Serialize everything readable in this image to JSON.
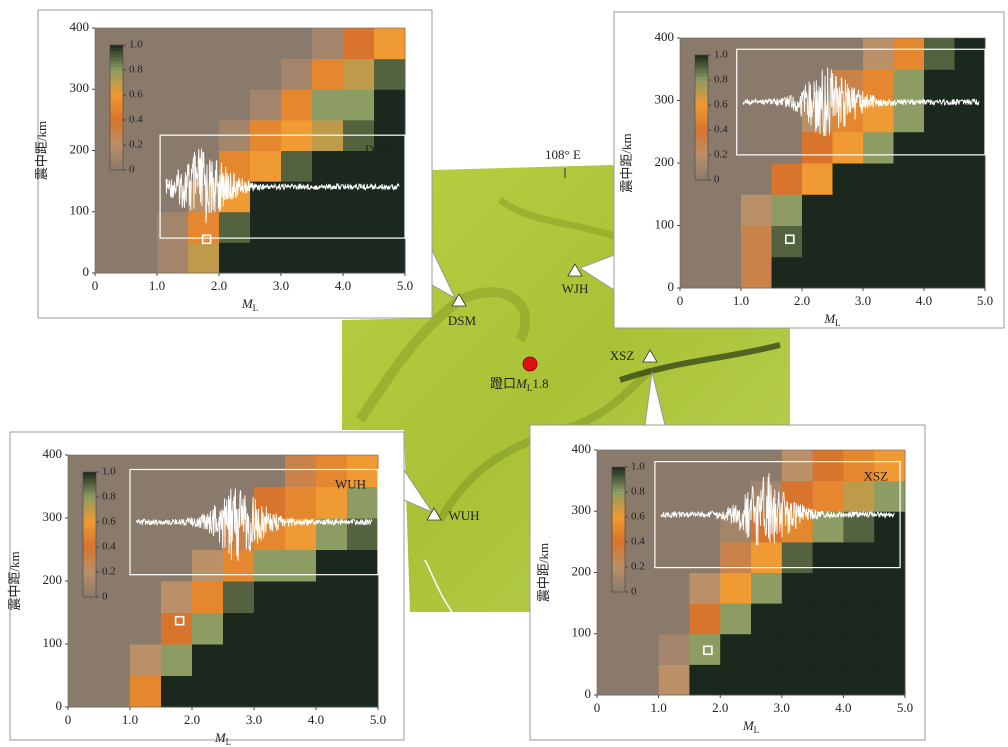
{
  "chart_data": [
    {
      "type": "heatmap",
      "label": "DSM",
      "label_color": "#111111",
      "x_label": {
        "main": "M",
        "sub": "L"
      },
      "y_label": "震中距/km",
      "x": [
        0,
        0.5,
        1,
        1.5,
        2,
        2.5,
        3,
        3.5,
        4,
        4.5,
        5
      ],
      "y": [
        0,
        50,
        100,
        150,
        200,
        250,
        300,
        350,
        400
      ],
      "values": [
        [
          0,
          0,
          0.1,
          0.7,
          1,
          1,
          1,
          1,
          1,
          1
        ],
        [
          0,
          0,
          0.1,
          0.5,
          0.9,
          1,
          1,
          1,
          1,
          1
        ],
        [
          0,
          0,
          0,
          0.2,
          0.6,
          1,
          1,
          1,
          1,
          1
        ],
        [
          0,
          0,
          0,
          0,
          0.5,
          0.6,
          0.9,
          1,
          1,
          1
        ],
        [
          0,
          0,
          0,
          0,
          0.1,
          0.5,
          0.6,
          0.7,
          0.9,
          1
        ],
        [
          0,
          0,
          0,
          0,
          0,
          0.1,
          0.5,
          0.8,
          0.8,
          1
        ],
        [
          0,
          0,
          0,
          0,
          0,
          0,
          0.1,
          0.5,
          0.7,
          0.9
        ],
        [
          0,
          0,
          0,
          0,
          0,
          0,
          0,
          0.1,
          0.4,
          0.6
        ]
      ],
      "xlim": [
        0,
        5
      ],
      "ylim": [
        0,
        400
      ],
      "xticks": [
        0,
        {
          "value": 1,
          "label": "1.0"
        },
        {
          "value": 2,
          "label": "2.0"
        },
        {
          "value": 3,
          "label": "3.0"
        },
        {
          "value": 4,
          "label": "4.0"
        },
        {
          "value": 5,
          "label": "5.0"
        }
      ],
      "yticks": [
        0,
        100,
        200,
        300,
        400
      ],
      "colorbar_ticks": [
        0,
        0.2,
        0.4,
        0.6,
        0.8,
        {
          "value": 1,
          "label": "1.0"
        }
      ],
      "colorscale": [
        "#8a7a6c",
        "#b99068",
        "#d8742c",
        "#ef9a32",
        "#8c9c62",
        "#1b281d"
      ],
      "event_point": {
        "x": 1.8,
        "y": 55
      }
    },
    {
      "type": "heatmap",
      "x_label": {
        "main": "M",
        "sub": "L"
      },
      "y_label": "震中距/km",
      "x": [
        0,
        0.5,
        1,
        1.5,
        2,
        2.5,
        3,
        3.5,
        4,
        4.5,
        5
      ],
      "y": [
        0,
        50,
        100,
        150,
        200,
        250,
        300,
        350,
        400
      ],
      "values": [
        [
          0,
          0,
          0.3,
          1,
          1,
          1,
          1,
          1,
          1,
          1
        ],
        [
          0,
          0,
          0.3,
          0.9,
          1,
          1,
          1,
          1,
          1,
          1
        ],
        [
          0,
          0,
          0.2,
          0.8,
          1,
          1,
          1,
          1,
          1,
          1
        ],
        [
          0,
          0,
          0,
          0.4,
          0.6,
          1,
          1,
          1,
          1,
          1
        ],
        [
          0,
          0,
          0,
          0,
          0.4,
          0.6,
          0.8,
          1,
          1,
          1
        ],
        [
          0,
          0,
          0,
          0,
          0.2,
          0.5,
          0.6,
          0.8,
          1,
          1
        ],
        [
          0,
          0,
          0,
          0,
          0,
          0.3,
          0.5,
          0.8,
          1,
          1
        ],
        [
          0,
          0,
          0,
          0,
          0,
          0,
          0.2,
          0.5,
          0.9,
          1
        ]
      ],
      "xlim": [
        0,
        5
      ],
      "ylim": [
        0,
        400
      ],
      "xticks": [
        0,
        {
          "value": 1,
          "label": "1.0"
        },
        {
          "value": 2,
          "label": "2.0"
        },
        {
          "value": 3,
          "label": "3.0"
        },
        {
          "value": 4,
          "label": "4.0"
        },
        {
          "value": 5,
          "label": "5.0"
        }
      ],
      "yticks": [
        0,
        100,
        200,
        300,
        400
      ],
      "colorbar_ticks": [
        0,
        0.2,
        0.4,
        0.6,
        0.8,
        {
          "value": 1,
          "label": "1.0"
        }
      ],
      "colorscale": [
        "#8a7a6c",
        "#b99068",
        "#d8742c",
        "#ef9a32",
        "#8c9c62",
        "#1b281d"
      ],
      "event_point": {
        "x": 1.8,
        "y": 78
      }
    },
    {
      "type": "heatmap",
      "label": "WUH",
      "label_color": "#8a1010",
      "x_label": {
        "main": "M",
        "sub": "L"
      },
      "y_label": "震中距/km",
      "x": [
        0,
        0.5,
        1,
        1.5,
        2,
        2.5,
        3,
        3.5,
        4,
        4.5,
        5
      ],
      "y": [
        0,
        50,
        100,
        150,
        200,
        250,
        300,
        350,
        400
      ],
      "values": [
        [
          0,
          0,
          0.5,
          1,
          1,
          1,
          1,
          1,
          1,
          1
        ],
        [
          0,
          0,
          0.2,
          0.8,
          1,
          1,
          1,
          1,
          1,
          1
        ],
        [
          0,
          0,
          0,
          0.4,
          0.8,
          1,
          1,
          1,
          1,
          1
        ],
        [
          0,
          0,
          0,
          0.2,
          0.5,
          0.9,
          1,
          1,
          1,
          1
        ],
        [
          0,
          0,
          0,
          0,
          0.2,
          0.5,
          0.8,
          0.8,
          1,
          1
        ],
        [
          0,
          0,
          0,
          0,
          0,
          0.3,
          0.5,
          0.6,
          0.8,
          0.9
        ],
        [
          0,
          0,
          0,
          0,
          0,
          0,
          0.4,
          0.5,
          0.6,
          0.8
        ],
        [
          0,
          0,
          0,
          0,
          0,
          0,
          0,
          0.3,
          0.5,
          0.6
        ]
      ],
      "xlim": [
        0,
        5
      ],
      "ylim": [
        0,
        400
      ],
      "xticks": [
        0,
        {
          "value": 1,
          "label": "1.0"
        },
        {
          "value": 2,
          "label": "2.0"
        },
        {
          "value": 3,
          "label": "3.0"
        },
        {
          "value": 4,
          "label": "4.0"
        },
        {
          "value": 5,
          "label": "5.0"
        }
      ],
      "yticks": [
        0,
        100,
        200,
        300,
        400
      ],
      "colorbar_ticks": [
        0,
        0.2,
        0.4,
        0.6,
        0.8,
        {
          "value": 1,
          "label": "1.0"
        }
      ],
      "colorscale": [
        "#8a7a6c",
        "#b99068",
        "#d8742c",
        "#ef9a32",
        "#8c9c62",
        "#1b281d"
      ],
      "event_point": {
        "x": 1.8,
        "y": 137
      }
    },
    {
      "type": "heatmap",
      "label": "XSZ",
      "label_color": "#8a1010",
      "x_label": {
        "main": "M",
        "sub": "L"
      },
      "y_label": "震中距/km",
      "x": [
        0,
        0.5,
        1,
        1.5,
        2,
        2.5,
        3,
        3.5,
        4,
        4.5,
        5
      ],
      "y": [
        0,
        50,
        100,
        150,
        200,
        250,
        300,
        350,
        400
      ],
      "values": [
        [
          0,
          0,
          0.2,
          1,
          1,
          1,
          1,
          1,
          1,
          1
        ],
        [
          0,
          0,
          0.1,
          0.8,
          1,
          1,
          1,
          1,
          1,
          1
        ],
        [
          0,
          0,
          0,
          0.4,
          0.8,
          1,
          1,
          1,
          1,
          1
        ],
        [
          0,
          0,
          0,
          0.2,
          0.6,
          0.8,
          1,
          1,
          1,
          1
        ],
        [
          0,
          0,
          0,
          0,
          0.3,
          0.6,
          0.9,
          1,
          1,
          1
        ],
        [
          0,
          0,
          0,
          0,
          0.1,
          0.4,
          0.5,
          0.8,
          0.9,
          1
        ],
        [
          0,
          0,
          0,
          0,
          0,
          0.1,
          0.4,
          0.5,
          0.7,
          0.8
        ],
        [
          0,
          0,
          0,
          0,
          0,
          0,
          0.2,
          0.4,
          0.5,
          0.6
        ]
      ],
      "xlim": [
        0,
        5
      ],
      "ylim": [
        0,
        400
      ],
      "xticks": [
        0,
        {
          "value": 1,
          "label": "1.0"
        },
        {
          "value": 2,
          "label": "2.0"
        },
        {
          "value": 3,
          "label": "3.0"
        },
        {
          "value": 4,
          "label": "4.0"
        },
        {
          "value": 5,
          "label": "5.0"
        }
      ],
      "yticks": [
        0,
        100,
        200,
        300,
        400
      ],
      "colorbar_ticks": [
        0,
        0.2,
        0.4,
        0.6,
        0.8,
        {
          "value": 1,
          "label": "1.0"
        }
      ],
      "colorscale": [
        "#8a7a6c",
        "#b99068",
        "#d8742c",
        "#ef9a32",
        "#8c9c62",
        "#1b281d"
      ],
      "event_point": {
        "x": 1.8,
        "y": 73
      }
    }
  ],
  "map": {
    "meridian_label": "108° E",
    "stations": [
      {
        "name": "DSM"
      },
      {
        "name": "WJH"
      },
      {
        "name": "XSZ"
      },
      {
        "name": "WUH"
      }
    ],
    "event": {
      "name": "蹬口",
      "mag_symbol": "M",
      "mag_sub": "L",
      "magnitude": 1.8
    }
  }
}
